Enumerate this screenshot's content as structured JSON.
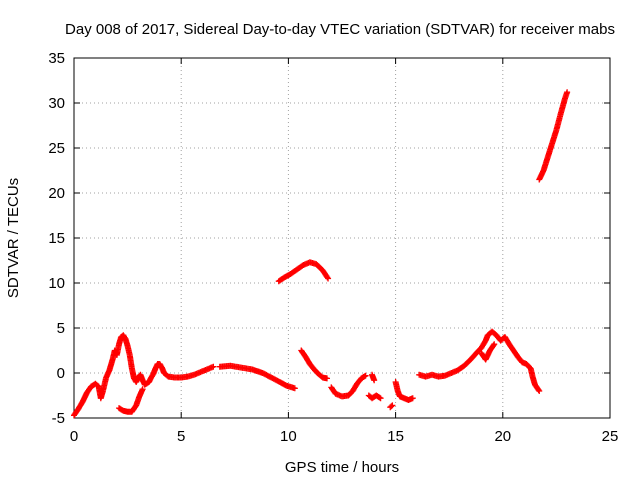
{
  "chart_data": {
    "type": "scatter",
    "title": "Day 008 of 2017, Sidereal Day-to-day VTEC variation (SDTVAR) for receiver mabs",
    "xlabel": "GPS time / hours",
    "ylabel": "SDTVAR / TECUs",
    "xlim": [
      0,
      25
    ],
    "ylim": [
      -5,
      35
    ],
    "xticks": [
      0,
      5,
      10,
      15,
      20,
      25
    ],
    "yticks": [
      -5,
      0,
      5,
      10,
      15,
      20,
      25,
      30,
      35
    ],
    "grid": true,
    "marker": "+",
    "color": "#ff0000",
    "series": [
      {
        "name": "SDTVAR",
        "segments": [
          [
            [
              0.0,
              -4.7
            ],
            [
              0.2,
              -4.0
            ],
            [
              0.4,
              -3.2
            ],
            [
              0.6,
              -2.2
            ],
            [
              0.8,
              -1.5
            ],
            [
              1.0,
              -1.2
            ],
            [
              1.15,
              -1.5
            ],
            [
              1.25,
              -2.8
            ],
            [
              1.35,
              -2.0
            ],
            [
              1.5,
              -0.5
            ],
            [
              1.65,
              0.3
            ],
            [
              1.8,
              1.5
            ],
            [
              1.9,
              2.5
            ],
            [
              2.0,
              2.0
            ],
            [
              2.1,
              3.2
            ],
            [
              2.2,
              4.0
            ],
            [
              2.3,
              4.2
            ],
            [
              2.4,
              3.8
            ],
            [
              2.5,
              3.0
            ],
            [
              2.6,
              2.0
            ],
            [
              2.7,
              0.5
            ],
            [
              2.8,
              -0.6
            ],
            [
              2.9,
              -1.0
            ],
            [
              3.0,
              -0.5
            ],
            [
              3.1,
              -0.2
            ],
            [
              3.2,
              -0.8
            ],
            [
              3.3,
              -1.3
            ],
            [
              3.5,
              -1.0
            ],
            [
              3.6,
              -0.5
            ],
            [
              3.7,
              -0.1
            ],
            [
              3.8,
              0.5
            ],
            [
              3.9,
              1.0
            ],
            [
              4.0,
              1.0
            ],
            [
              4.1,
              0.6
            ],
            [
              4.2,
              0.0
            ],
            [
              4.4,
              -0.4
            ],
            [
              4.7,
              -0.5
            ],
            [
              5.0,
              -0.5
            ],
            [
              5.3,
              -0.4
            ],
            [
              5.6,
              -0.2
            ],
            [
              5.9,
              0.1
            ],
            [
              6.2,
              0.4
            ],
            [
              6.5,
              0.7
            ]
          ],
          [
            [
              2.1,
              -3.9
            ],
            [
              2.3,
              -4.2
            ],
            [
              2.5,
              -4.3
            ],
            [
              2.7,
              -4.3
            ],
            [
              2.9,
              -3.6
            ],
            [
              3.05,
              -2.6
            ],
            [
              3.2,
              -1.8
            ]
          ],
          [
            [
              6.8,
              0.7
            ],
            [
              7.3,
              0.8
            ],
            [
              7.8,
              0.6
            ],
            [
              8.3,
              0.4
            ],
            [
              8.8,
              0.0
            ],
            [
              9.2,
              -0.5
            ],
            [
              9.6,
              -1.0
            ],
            [
              9.9,
              -1.4
            ],
            [
              10.3,
              -1.7
            ]
          ],
          [
            [
              9.55,
              10.2
            ],
            [
              9.8,
              10.6
            ],
            [
              10.1,
              11.0
            ],
            [
              10.4,
              11.5
            ],
            [
              10.7,
              12.0
            ],
            [
              11.0,
              12.3
            ],
            [
              11.3,
              12.1
            ],
            [
              11.6,
              11.4
            ],
            [
              11.85,
              10.5
            ]
          ],
          [
            [
              10.6,
              2.5
            ],
            [
              10.8,
              1.8
            ],
            [
              11.0,
              1.0
            ],
            [
              11.2,
              0.4
            ],
            [
              11.4,
              -0.1
            ],
            [
              11.6,
              -0.5
            ],
            [
              11.8,
              -0.6
            ]
          ],
          [
            [
              12.0,
              -1.6
            ],
            [
              12.2,
              -2.3
            ],
            [
              12.5,
              -2.6
            ],
            [
              12.8,
              -2.5
            ],
            [
              13.0,
              -2.0
            ],
            [
              13.2,
              -1.2
            ],
            [
              13.4,
              -0.6
            ],
            [
              13.6,
              -0.3
            ]
          ],
          [
            [
              13.9,
              -0.2
            ],
            [
              14.0,
              -0.8
            ]
          ],
          [
            [
              13.75,
              -2.5
            ],
            [
              13.9,
              -2.8
            ],
            [
              14.1,
              -2.5
            ],
            [
              14.3,
              -2.8
            ]
          ],
          [
            [
              14.75,
              -3.8
            ],
            [
              14.85,
              -3.6
            ]
          ],
          [
            [
              15.0,
              -1.0
            ],
            [
              15.1,
              -2.0
            ],
            [
              15.2,
              -2.6
            ],
            [
              15.4,
              -2.8
            ],
            [
              15.6,
              -3.0
            ],
            [
              15.8,
              -2.8
            ]
          ],
          [
            [
              16.1,
              -0.2
            ],
            [
              16.4,
              -0.4
            ],
            [
              16.7,
              -0.2
            ],
            [
              17.0,
              -0.4
            ],
            [
              17.3,
              -0.3
            ],
            [
              17.6,
              0.0
            ],
            [
              17.9,
              0.3
            ],
            [
              18.2,
              0.8
            ],
            [
              18.5,
              1.5
            ],
            [
              18.8,
              2.3
            ],
            [
              19.0,
              2.8
            ],
            [
              19.2,
              3.6
            ],
            [
              19.3,
              4.2
            ],
            [
              19.5,
              4.6
            ],
            [
              19.7,
              4.2
            ],
            [
              19.9,
              3.6
            ],
            [
              20.1,
              4.0
            ],
            [
              20.3,
              3.2
            ],
            [
              20.5,
              2.5
            ],
            [
              20.7,
              1.8
            ],
            [
              20.9,
              1.2
            ],
            [
              21.1,
              1.0
            ],
            [
              21.3,
              0.5
            ],
            [
              21.4,
              -0.5
            ],
            [
              21.5,
              -1.3
            ],
            [
              21.7,
              -2.0
            ]
          ],
          [
            [
              19.0,
              2.2
            ],
            [
              19.2,
              1.5
            ],
            [
              19.4,
              2.5
            ],
            [
              19.6,
              3.2
            ]
          ],
          [
            [
              21.7,
              21.5
            ],
            [
              21.9,
              22.5
            ],
            [
              22.1,
              24.0
            ],
            [
              22.3,
              25.5
            ],
            [
              22.5,
              27.0
            ],
            [
              22.7,
              28.8
            ],
            [
              22.9,
              30.5
            ],
            [
              23.0,
              31.2
            ]
          ]
        ]
      }
    ]
  }
}
